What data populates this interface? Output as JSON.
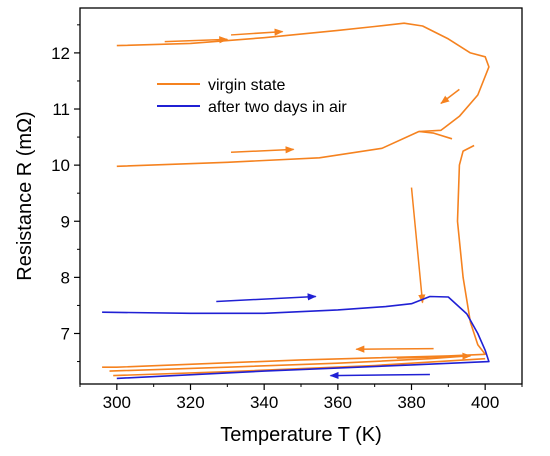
{
  "chart_data": {
    "type": "line",
    "title": "",
    "xlabel": "Temperature T (K)",
    "ylabel": "Resistance R (mΩ)",
    "xlim": [
      290,
      410
    ],
    "ylim": [
      6.1,
      12.8
    ],
    "xticks": [
      300,
      320,
      340,
      360,
      380,
      400
    ],
    "yticks": [
      7,
      8,
      9,
      10,
      11,
      12
    ],
    "grid": false,
    "legend_position": "upper-left inside",
    "series": [
      {
        "name": "virgin state",
        "color": "#f5821f",
        "segments": [
          [
            [
              300,
              12.13
            ],
            [
              320,
              12.17
            ],
            [
              340,
              12.27
            ],
            [
              360,
              12.4
            ],
            [
              370,
              12.47
            ],
            [
              378,
              12.53
            ],
            [
              383,
              12.48
            ],
            [
              390,
              12.25
            ],
            [
              396,
              12.0
            ],
            [
              400,
              11.93
            ],
            [
              401,
              11.75
            ],
            [
              398,
              11.25
            ],
            [
              393,
              10.87
            ],
            [
              388,
              10.62
            ],
            [
              382,
              10.6
            ],
            [
              372,
              10.3
            ],
            [
              355,
              10.13
            ],
            [
              330,
              10.05
            ],
            [
              300,
              9.98
            ]
          ],
          [
            [
              391,
              10.47
            ],
            [
              386,
              10.57
            ],
            [
              382,
              10.6
            ]
          ],
          [
            [
              397,
              10.35
            ],
            [
              394,
              10.25
            ],
            [
              393,
              10.0
            ],
            [
              392.5,
              9.0
            ],
            [
              394,
              8.0
            ],
            [
              396,
              7.2
            ],
            [
              398,
              6.8
            ],
            [
              400,
              6.63
            ],
            [
              390,
              6.6
            ],
            [
              350,
              6.53
            ],
            [
              300,
              6.4
            ],
            [
              296,
              6.4
            ]
          ],
          [
            [
              298,
              6.33
            ],
            [
              330,
              6.4
            ],
            [
              360,
              6.47
            ],
            [
              385,
              6.55
            ],
            [
              395,
              6.6
            ]
          ],
          [
            [
              299,
              6.25
            ],
            [
              330,
              6.32
            ],
            [
              370,
              6.43
            ],
            [
              400,
              6.55
            ]
          ]
        ],
        "arrows": [
          [
            [
              331,
              12.32
            ],
            [
              345,
              12.38
            ]
          ],
          [
            [
              313,
              12.2
            ],
            [
              330,
              12.24
            ]
          ],
          [
            [
              393,
              11.35
            ],
            [
              388,
              11.1
            ]
          ],
          [
            [
              331,
              10.23
            ],
            [
              348,
              10.28
            ]
          ],
          [
            [
              380,
              9.6
            ],
            [
              383,
              7.55
            ]
          ],
          [
            [
              386,
              6.73
            ],
            [
              365,
              6.72
            ]
          ],
          [
            [
              376,
              6.56
            ],
            [
              396,
              6.6
            ]
          ]
        ]
      },
      {
        "name": "after two days in air",
        "color": "#2020d4",
        "segments": [
          [
            [
              296,
              7.38
            ],
            [
              320,
              7.36
            ],
            [
              340,
              7.36
            ],
            [
              360,
              7.42
            ],
            [
              373,
              7.48
            ],
            [
              380,
              7.53
            ],
            [
              385,
              7.66
            ],
            [
              390,
              7.65
            ],
            [
              395,
              7.35
            ],
            [
              398,
              7.0
            ],
            [
              400,
              6.7
            ],
            [
              401,
              6.5
            ],
            [
              380,
              6.44
            ],
            [
              340,
              6.33
            ],
            [
              300,
              6.2
            ]
          ]
        ],
        "arrows": [
          [
            [
              327,
              7.57
            ],
            [
              354,
              7.66
            ]
          ],
          [
            [
              385,
              6.27
            ],
            [
              358,
              6.25
            ]
          ]
        ]
      }
    ]
  }
}
